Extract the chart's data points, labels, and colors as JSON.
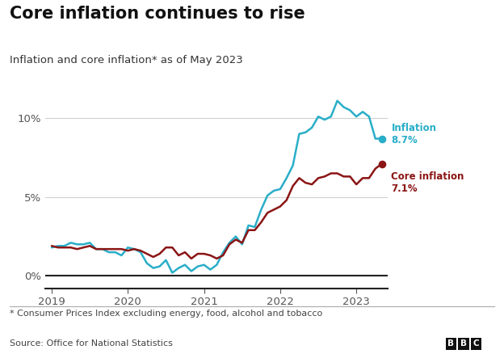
{
  "title": "Core inflation continues to rise",
  "subtitle": "Inflation and core inflation* as of May 2023",
  "footnote": "* Consumer Prices Index excluding energy, food, alcohol and tobacco",
  "source": "Source: Office for National Statistics",
  "inflation_color": "#29aec8",
  "core_color": "#8b1515",
  "background_color": "#ffffff",
  "ylim": [
    -0.8,
    13.0
  ],
  "yticks": [
    0,
    5,
    10
  ],
  "ytick_labels": [
    "0%",
    "5%",
    "10%"
  ],
  "inflation_label": "Inflation\n8.7%",
  "core_label": "Core inflation\n7.1%",
  "inflation_values": [
    1.8,
    1.9,
    1.9,
    2.1,
    2.0,
    2.0,
    2.1,
    1.7,
    1.7,
    1.5,
    1.5,
    1.3,
    1.8,
    1.7,
    1.5,
    0.8,
    0.5,
    0.6,
    1.0,
    0.2,
    0.5,
    0.7,
    0.3,
    0.6,
    0.7,
    0.4,
    0.7,
    1.5,
    2.1,
    2.5,
    2.0,
    3.2,
    3.1,
    4.2,
    5.1,
    5.4,
    5.5,
    6.2,
    7.0,
    9.0,
    9.1,
    9.4,
    10.1,
    9.9,
    10.1,
    11.1,
    10.7,
    10.5,
    10.1,
    10.4,
    10.1,
    8.7,
    8.7
  ],
  "core_values": [
    1.9,
    1.8,
    1.8,
    1.8,
    1.7,
    1.8,
    1.9,
    1.7,
    1.7,
    1.7,
    1.7,
    1.7,
    1.6,
    1.7,
    1.6,
    1.4,
    1.2,
    1.4,
    1.8,
    1.8,
    1.3,
    1.5,
    1.1,
    1.4,
    1.4,
    1.3,
    1.1,
    1.3,
    2.0,
    2.3,
    2.1,
    2.9,
    2.9,
    3.4,
    4.0,
    4.2,
    4.4,
    4.8,
    5.7,
    6.2,
    5.9,
    5.8,
    6.2,
    6.3,
    6.5,
    6.5,
    6.3,
    6.3,
    5.8,
    6.2,
    6.2,
    6.8,
    7.1
  ],
  "n_points": 53,
  "xtick_positions": [
    0,
    12,
    24,
    36,
    48
  ],
  "xtick_labels": [
    "2019",
    "2020",
    "2021",
    "2022",
    "2023"
  ]
}
